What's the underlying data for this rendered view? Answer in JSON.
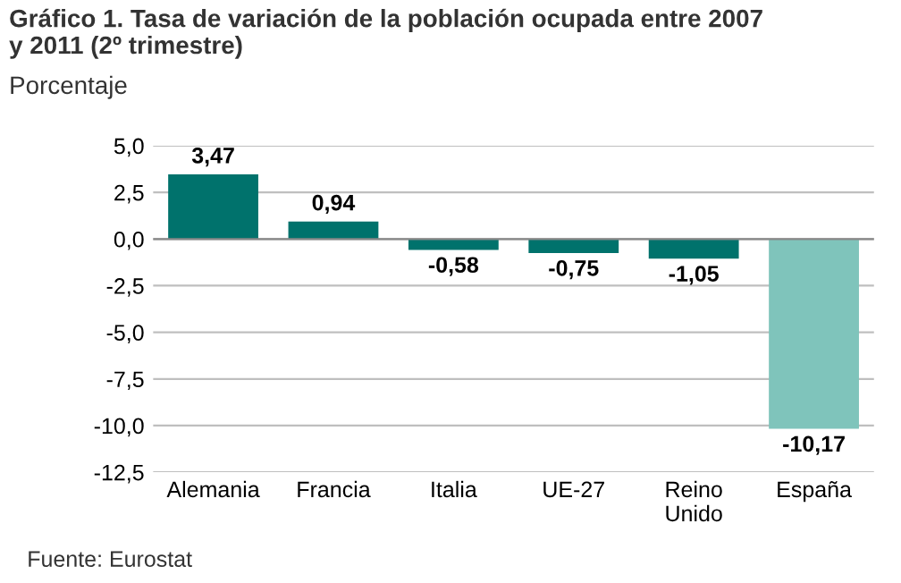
{
  "chart_data": {
    "type": "bar",
    "title": "Gráfico 1. Tasa de variación de la población ocupada entre 2007\ny 2011 (2º trimestre)",
    "ylabel": "Porcentaje",
    "categories": [
      "Alemania",
      "Francia",
      "Italia",
      "UE-27",
      "Reino\nUnido",
      "España"
    ],
    "values": [
      3.47,
      0.94,
      -0.58,
      -0.75,
      -1.05,
      -10.17
    ],
    "value_labels": [
      "3,47",
      "0,94",
      "-0,58",
      "-0,75",
      "-1,05",
      "-10,17"
    ],
    "colors": [
      "#00726c",
      "#00726c",
      "#00726c",
      "#00726c",
      "#00726c",
      "#7fc4bb"
    ],
    "ylim": [
      -12.5,
      5.0
    ],
    "yticks": [
      {
        "value": -12.5,
        "label": "-12,5"
      },
      {
        "value": -10.0,
        "label": "-10,0"
      },
      {
        "value": -7.5,
        "label": "-7,5"
      },
      {
        "value": -5.0,
        "label": "-5,0"
      },
      {
        "value": -2.5,
        "label": "-2,5"
      },
      {
        "value": 0.0,
        "label": "0,0"
      },
      {
        "value": 2.5,
        "label": "2,5"
      },
      {
        "value": 5.0,
        "label": "5,0"
      }
    ],
    "grid": "y",
    "annotations": [
      "Fuente: Eurostat"
    ]
  }
}
